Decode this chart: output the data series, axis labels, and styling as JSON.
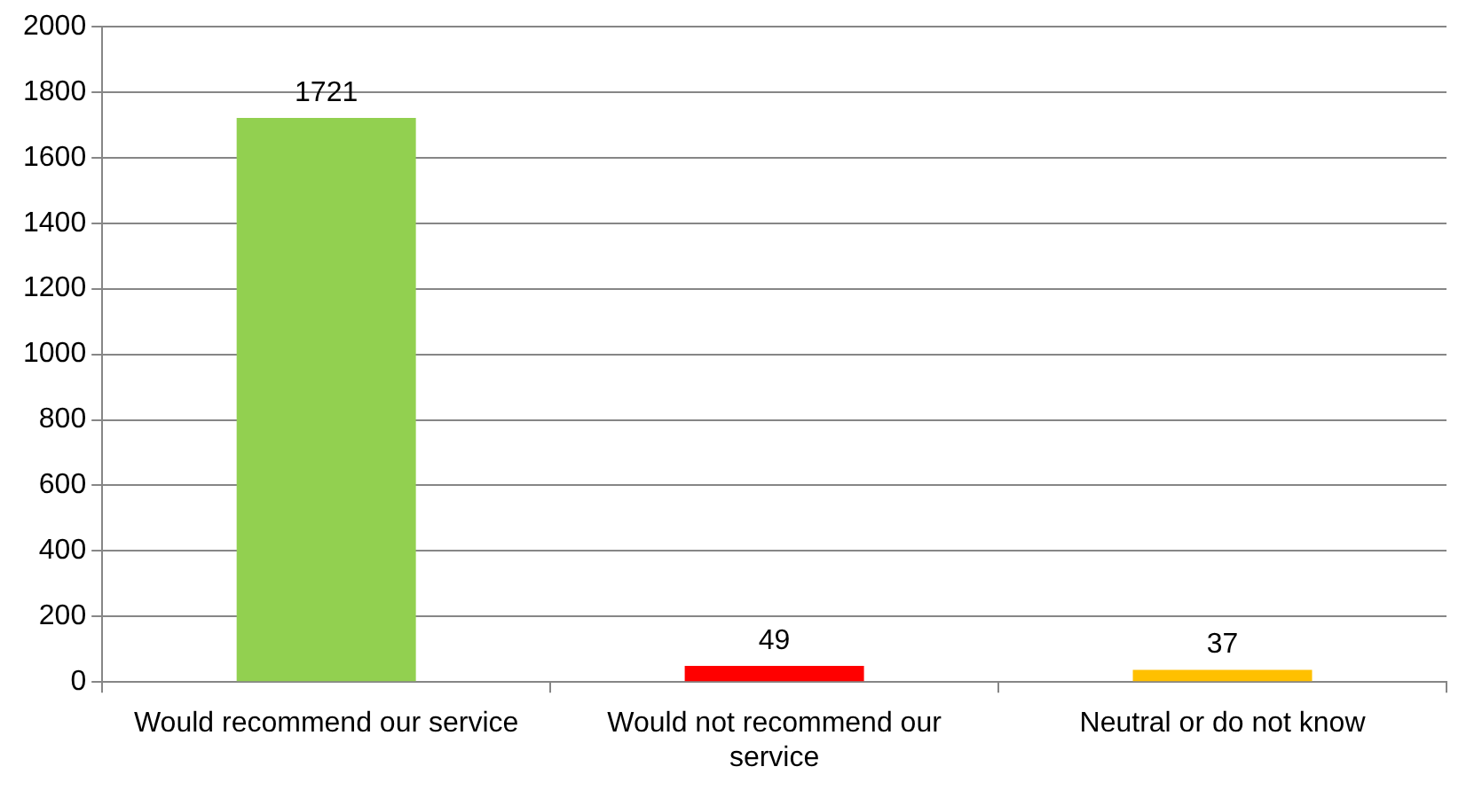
{
  "chart_data": {
    "type": "bar",
    "categories": [
      "Would recommend our service",
      "Would not recommend our service",
      "Neutral or do not know"
    ],
    "values": [
      1721,
      49,
      37
    ],
    "colors": [
      "#92d050",
      "#ff0000",
      "#ffc000"
    ],
    "ylim": [
      0,
      2000
    ],
    "yticks": [
      0,
      200,
      400,
      600,
      800,
      1000,
      1200,
      1400,
      1600,
      1800,
      2000
    ],
    "grid": "y",
    "legend": false,
    "data_labels": true
  }
}
